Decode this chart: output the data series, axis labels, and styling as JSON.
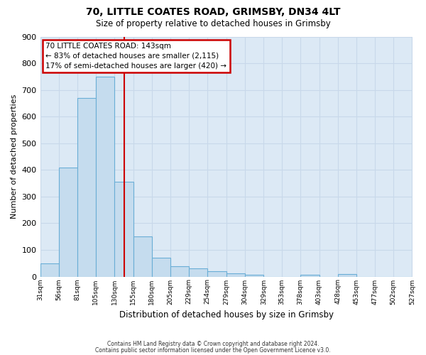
{
  "title": "70, LITTLE COATES ROAD, GRIMSBY, DN34 4LT",
  "subtitle": "Size of property relative to detached houses in Grimsby",
  "xlabel": "Distribution of detached houses by size in Grimsby",
  "ylabel": "Number of detached properties",
  "bin_edges": [
    31,
    56,
    81,
    105,
    130,
    155,
    180,
    205,
    229,
    254,
    279,
    304,
    329,
    353,
    378,
    403,
    428,
    453,
    477,
    502,
    527
  ],
  "bar_heights": [
    50,
    410,
    670,
    750,
    355,
    150,
    70,
    38,
    30,
    20,
    12,
    8,
    0,
    0,
    8,
    0,
    10,
    0,
    0,
    0
  ],
  "tick_labels": [
    "31sqm",
    "56sqm",
    "81sqm",
    "105sqm",
    "130sqm",
    "155sqm",
    "180sqm",
    "205sqm",
    "229sqm",
    "254sqm",
    "279sqm",
    "304sqm",
    "329sqm",
    "353sqm",
    "378sqm",
    "403sqm",
    "428sqm",
    "453sqm",
    "477sqm",
    "502sqm",
    "527sqm"
  ],
  "bar_color": "#c5dcee",
  "bar_edge_color": "#6aaed6",
  "red_line_x": 143,
  "ylim": [
    0,
    900
  ],
  "yticks": [
    0,
    100,
    200,
    300,
    400,
    500,
    600,
    700,
    800,
    900
  ],
  "annotation_title": "70 LITTLE COATES ROAD: 143sqm",
  "annotation_line1": "← 83% of detached houses are smaller (2,115)",
  "annotation_line2": "17% of semi-detached houses are larger (420) →",
  "annotation_box_color": "#ffffff",
  "annotation_box_edge_color": "#cc0000",
  "grid_color": "#c8d8ea",
  "background_color": "#dce9f5",
  "footnote1": "Contains HM Land Registry data © Crown copyright and database right 2024.",
  "footnote2": "Contains public sector information licensed under the Open Government Licence v3.0."
}
